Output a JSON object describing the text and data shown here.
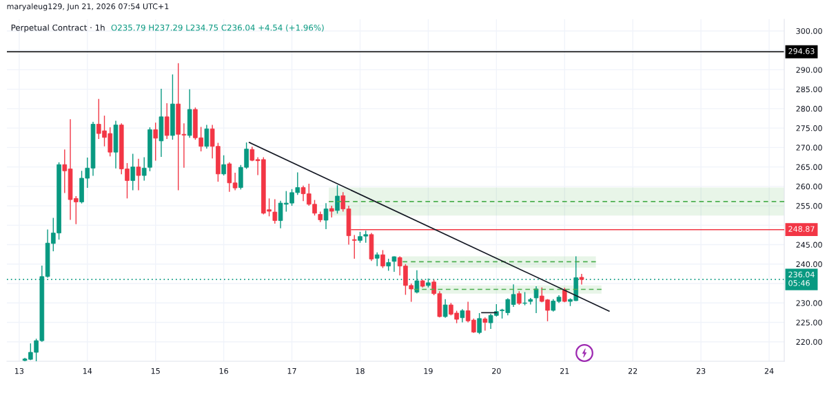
{
  "chart_data": {
    "type": "candlestick",
    "title": "Perpetual Contract · 1h",
    "annotations": [
      "maryaleug129, Jun 21, 2026 07:54 UTC+1",
      "O235.79 H237.29 L234.75 C236.04 +4.54 (+1.96%)"
    ],
    "x": [
      "2026-06-13T02:00",
      "2026-06-13T04:00",
      "2026-06-13T06:00",
      "2026-06-13T08:00",
      "2026-06-13T10:00",
      "2026-06-13T12:00",
      "2026-06-13T14:00",
      "2026-06-13T16:00",
      "2026-06-13T18:00",
      "2026-06-13T20:00",
      "2026-06-13T22:00",
      "2026-06-14T00:00",
      "2026-06-14T02:00",
      "2026-06-14T04:00",
      "2026-06-14T06:00",
      "2026-06-14T08:00",
      "2026-06-14T10:00",
      "2026-06-14T12:00",
      "2026-06-14T14:00",
      "2026-06-14T16:00",
      "2026-06-14T18:00",
      "2026-06-14T20:00",
      "2026-06-14T22:00",
      "2026-06-15T00:00",
      "2026-06-15T02:00",
      "2026-06-15T04:00",
      "2026-06-15T06:00",
      "2026-06-15T08:00",
      "2026-06-15T10:00",
      "2026-06-15T12:00",
      "2026-06-15T14:00",
      "2026-06-15T16:00",
      "2026-06-15T18:00",
      "2026-06-15T20:00",
      "2026-06-15T22:00",
      "2026-06-16T00:00",
      "2026-06-16T02:00",
      "2026-06-16T04:00",
      "2026-06-16T06:00",
      "2026-06-16T08:00",
      "2026-06-16T10:00",
      "2026-06-16T12:00",
      "2026-06-16T14:00",
      "2026-06-16T16:00",
      "2026-06-16T18:00",
      "2026-06-16T20:00",
      "2026-06-16T22:00",
      "2026-06-17T00:00",
      "2026-06-17T02:00",
      "2026-06-17T04:00",
      "2026-06-17T06:00",
      "2026-06-17T08:00",
      "2026-06-17T10:00",
      "2026-06-17T12:00",
      "2026-06-17T14:00",
      "2026-06-17T16:00",
      "2026-06-17T18:00",
      "2026-06-17T20:00",
      "2026-06-17T22:00",
      "2026-06-18T00:00",
      "2026-06-18T02:00",
      "2026-06-18T04:00",
      "2026-06-18T06:00",
      "2026-06-18T08:00",
      "2026-06-18T10:00",
      "2026-06-18T12:00",
      "2026-06-18T14:00",
      "2026-06-18T16:00",
      "2026-06-18T18:00",
      "2026-06-18T20:00",
      "2026-06-18T22:00",
      "2026-06-19T00:00",
      "2026-06-19T02:00",
      "2026-06-19T04:00",
      "2026-06-19T06:00",
      "2026-06-19T08:00",
      "2026-06-19T10:00",
      "2026-06-19T12:00",
      "2026-06-19T14:00",
      "2026-06-19T16:00",
      "2026-06-19T18:00",
      "2026-06-19T20:00",
      "2026-06-19T22:00",
      "2026-06-20T00:00",
      "2026-06-20T02:00",
      "2026-06-20T04:00",
      "2026-06-20T06:00",
      "2026-06-20T08:00",
      "2026-06-20T10:00",
      "2026-06-20T12:00",
      "2026-06-20T14:00",
      "2026-06-20T16:00",
      "2026-06-20T18:00",
      "2026-06-20T20:00",
      "2026-06-20T22:00",
      "2026-06-21T00:00",
      "2026-06-21T02:00",
      "2026-06-21T04:00",
      "2026-06-21T06:00"
    ],
    "ohlc": [
      [
        215.2,
        215.9,
        215.0,
        215.6
      ],
      [
        215.5,
        219.6,
        215.3,
        217.3
      ],
      [
        217.3,
        220.8,
        215.0,
        220.3
      ],
      [
        220.3,
        239.6,
        220.0,
        236.8
      ],
      [
        236.8,
        248.9,
        236.5,
        245.4
      ],
      [
        245.3,
        251.9,
        243.3,
        248.0
      ],
      [
        248.0,
        266.2,
        246.3,
        265.6
      ],
      [
        265.6,
        269.5,
        258.3,
        264.0
      ],
      [
        264.5,
        277.3,
        251.4,
        256.6
      ],
      [
        256.9,
        257.5,
        250.3,
        256.0
      ],
      [
        256.0,
        264.0,
        255.6,
        262.1
      ],
      [
        262.1,
        267.4,
        259.6,
        264.7
      ],
      [
        264.7,
        276.6,
        262.7,
        276.0
      ],
      [
        276.0,
        282.5,
        272.2,
        273.6
      ],
      [
        274.3,
        278.2,
        270.3,
        272.6
      ],
      [
        273.6,
        275.2,
        267.7,
        268.8
      ],
      [
        268.8,
        276.9,
        264.6,
        275.8
      ],
      [
        275.8,
        276.2,
        263.1,
        264.5
      ],
      [
        264.5,
        266.0,
        256.9,
        261.5
      ],
      [
        261.5,
        268.4,
        259.0,
        265.0
      ],
      [
        265.0,
        267.1,
        259.0,
        262.8
      ],
      [
        262.8,
        267.5,
        261.5,
        264.7
      ],
      [
        264.9,
        275.2,
        263.9,
        274.6
      ],
      [
        274.6,
        276.4,
        266.6,
        272.4
      ],
      [
        271.7,
        285.1,
        267.6,
        277.9
      ],
      [
        277.9,
        281.4,
        272.2,
        273.1
      ],
      [
        273.1,
        288.8,
        272.0,
        281.2
      ],
      [
        281.2,
        291.7,
        259.0,
        273.4
      ],
      [
        273.4,
        276.2,
        264.8,
        273.2
      ],
      [
        273.1,
        285.0,
        272.5,
        279.8
      ],
      [
        279.8,
        280.3,
        272.0,
        272.5
      ],
      [
        272.5,
        275.3,
        269.0,
        270.3
      ],
      [
        270.3,
        275.8,
        269.7,
        274.8
      ],
      [
        274.8,
        275.8,
        267.2,
        270.3
      ],
      [
        270.3,
        271.2,
        261.2,
        263.2
      ],
      [
        263.2,
        268.0,
        262.8,
        265.6
      ],
      [
        265.8,
        266.2,
        258.6,
        260.9
      ],
      [
        260.9,
        263.5,
        259.0,
        259.6
      ],
      [
        259.7,
        265.5,
        259.2,
        264.9
      ],
      [
        264.9,
        271.3,
        264.5,
        269.6
      ],
      [
        269.5,
        270.2,
        266.5,
        266.7
      ],
      [
        266.9,
        267.5,
        262.9,
        266.6
      ],
      [
        266.9,
        267.5,
        252.8,
        253.1
      ],
      [
        254.0,
        256.9,
        252.3,
        253.6
      ],
      [
        253.4,
        256.7,
        250.4,
        251.2
      ],
      [
        251.2,
        256.3,
        249.2,
        255.7
      ],
      [
        255.4,
        258.8,
        253.5,
        255.7
      ],
      [
        255.7,
        259.3,
        255.0,
        258.4
      ],
      [
        258.4,
        263.6,
        257.8,
        259.7
      ],
      [
        259.7,
        260.2,
        256.2,
        258.1
      ],
      [
        258.1,
        260.7,
        255.0,
        255.4
      ],
      [
        255.4,
        256.5,
        252.5,
        253.1
      ],
      [
        252.8,
        253.5,
        250.8,
        251.4
      ],
      [
        251.3,
        255.7,
        249.0,
        254.2
      ],
      [
        254.3,
        255.0,
        252.0,
        253.6
      ],
      [
        253.8,
        260.3,
        253.0,
        257.5
      ],
      [
        257.6,
        258.5,
        253.5,
        254.2
      ],
      [
        254.2,
        255.0,
        245.0,
        247.3
      ],
      [
        246.3,
        247.5,
        241.4,
        246.1
      ],
      [
        246.1,
        248.3,
        245.5,
        247.1
      ],
      [
        247.2,
        248.6,
        245.5,
        247.6
      ],
      [
        247.6,
        248.0,
        240.8,
        241.3
      ],
      [
        241.5,
        243.0,
        239.5,
        242.4
      ],
      [
        242.4,
        243.6,
        239.0,
        239.5
      ],
      [
        239.5,
        241.4,
        238.3,
        240.4
      ],
      [
        240.7,
        242.0,
        238.0,
        241.9
      ],
      [
        241.7,
        242.0,
        237.1,
        239.5
      ],
      [
        239.5,
        240.0,
        232.1,
        234.5
      ],
      [
        234.5,
        235.0,
        230.3,
        233.6
      ],
      [
        232.8,
        238.4,
        232.5,
        235.7
      ],
      [
        235.7,
        236.0,
        234.0,
        234.3
      ],
      [
        234.5,
        236.3,
        234.0,
        235.2
      ],
      [
        235.4,
        236.0,
        232.0,
        232.4
      ],
      [
        232.4,
        233.0,
        226.3,
        226.5
      ],
      [
        226.5,
        231.0,
        226.2,
        229.5
      ],
      [
        229.5,
        230.0,
        226.8,
        227.1
      ],
      [
        227.4,
        228.0,
        224.8,
        225.8
      ],
      [
        226.2,
        228.4,
        225.0,
        228.0
      ],
      [
        228.0,
        230.3,
        225.0,
        225.4
      ],
      [
        225.6,
        226.0,
        222.3,
        222.5
      ],
      [
        222.4,
        227.4,
        222.0,
        226.0
      ],
      [
        225.9,
        226.3,
        222.9,
        225.0
      ],
      [
        224.9,
        227.2,
        223.3,
        226.8
      ],
      [
        226.8,
        229.7,
        226.5,
        227.8
      ],
      [
        228.0,
        228.5,
        226.0,
        228.2
      ],
      [
        227.5,
        231.2,
        226.8,
        230.9
      ],
      [
        229.6,
        234.8,
        229.0,
        232.2
      ],
      [
        232.4,
        233.0,
        229.5,
        229.9
      ],
      [
        229.9,
        232.8,
        229.4,
        230.0
      ],
      [
        230.4,
        231.3,
        229.6,
        230.9
      ],
      [
        231.3,
        234.3,
        227.4,
        233.6
      ],
      [
        231.8,
        234.0,
        230.2,
        230.4
      ],
      [
        230.8,
        231.0,
        225.3,
        228.1
      ],
      [
        228.1,
        231.0,
        227.8,
        230.5
      ],
      [
        230.4,
        232.0,
        230.0,
        231.5
      ],
      [
        233.3,
        233.9,
        230.2,
        230.4
      ],
      [
        230.4,
        231.2,
        229.2,
        230.9
      ],
      [
        230.6,
        242.0,
        230.5,
        236.5
      ],
      [
        236.6,
        237.5,
        234.75,
        236.04
      ]
    ],
    "colors": [
      "#089981",
      "#089981",
      "#089981",
      "#089981",
      "#089981",
      "#089981",
      "#089981",
      "#f23645",
      "#f23645",
      "#f23645",
      "#089981",
      "#089981",
      "#089981",
      "#f23645",
      "#f23645",
      "#f23645",
      "#089981",
      "#f23645",
      "#f23645",
      "#089981",
      "#f23645",
      "#089981",
      "#089981",
      "#f23645",
      "#089981",
      "#f23645",
      "#089981",
      "#f23645",
      "#f23645",
      "#089981",
      "#f23645",
      "#f23645",
      "#089981",
      "#f23645",
      "#f23645",
      "#089981",
      "#f23645",
      "#f23645",
      "#089981",
      "#089981",
      "#f23645",
      "#f23645",
      "#f23645",
      "#f23645",
      "#f23645",
      "#089981",
      "#089981",
      "#089981",
      "#089981",
      "#f23645",
      "#f23645",
      "#f23645",
      "#f23645",
      "#089981",
      "#f23645",
      "#089981",
      "#f23645",
      "#f23645",
      "#f23645",
      "#089981",
      "#089981",
      "#f23645",
      "#089981",
      "#f23645",
      "#089981",
      "#089981",
      "#f23645",
      "#f23645",
      "#f23645",
      "#089981",
      "#f23645",
      "#089981",
      "#f23645",
      "#f23645",
      "#089981",
      "#f23645",
      "#f23645",
      "#089981",
      "#f23645",
      "#f23645",
      "#089981",
      "#f23645",
      "#089981",
      "#089981",
      "#089981",
      "#089981",
      "#089981",
      "#f23645",
      "#089981",
      "#089981",
      "#089981",
      "#f23645",
      "#f23645",
      "#089981",
      "#089981",
      "#f23645",
      "#089981",
      "#089981",
      "#f23645"
    ],
    "series": [
      {
        "type": "line",
        "x": [
          "2026-06-17T13:00",
          "2026-06-24T05:20"
        ],
        "values": [
          256.1,
          256.1
        ],
        "lower": [
          252.5,
          252.5
        ],
        "upper": [
          259.7,
          259.7
        ],
        "color": "#4caf50",
        "line_style": "dashed"
      },
      {
        "type": "line",
        "x": [
          "2026-06-18T15:00",
          "2026-06-21T11:00"
        ],
        "values": [
          240.6,
          240.6
        ],
        "lower": [
          239.1,
          239.1
        ],
        "upper": [
          242.0,
          242.0
        ],
        "color": "#4caf50",
        "line_style": "dashed"
      },
      {
        "type": "line",
        "x": [
          "2026-06-18T19:00",
          "2026-06-21T13:00"
        ],
        "values": [
          233.5,
          233.5
        ],
        "lower": [
          232.4,
          232.4
        ],
        "upper": [
          234.5,
          234.5
        ],
        "color": "#4caf50",
        "line_style": "dashed"
      },
      {
        "type": "line",
        "x": [
          "2026-06-17T21:00",
          "2026-06-24T05:20"
        ],
        "values": [
          248.87,
          248.87
        ],
        "color": "#f23645",
        "line_style": "solid",
        "value_labels": [
          null,
          "248.87"
        ]
      },
      {
        "type": "line",
        "x": [
          "2026-06-16T09:00",
          "2026-06-21T15:40"
        ],
        "values": [
          271.3,
          227.9
        ],
        "color": "#131722",
        "line_style": "solid"
      },
      {
        "type": "line",
        "x": [
          "2026-06-19T18:50",
          "2026-06-20T00:00"
        ],
        "values": [
          227.5,
          227.5
        ],
        "color": "#131722",
        "line_style": "solid"
      }
    ],
    "ref_lines": [
      {
        "axis": "y",
        "value": 294.63,
        "label": "294.63",
        "color": "#000000",
        "line_style": "solid"
      },
      {
        "axis": "y",
        "value": 236.04,
        "label": "236.04\n05:46",
        "color": "#089981",
        "line_style": "dotted"
      }
    ],
    "xlim": [
      "2026-06-12T19:40",
      "2026-06-24T05:20"
    ],
    "xticks": [
      {
        "value": "2026-06-13",
        "label": "13"
      },
      {
        "value": "2026-06-14",
        "label": "14"
      },
      {
        "value": "2026-06-15",
        "label": "15"
      },
      {
        "value": "2026-06-16",
        "label": "16"
      },
      {
        "value": "2026-06-17",
        "label": "17"
      },
      {
        "value": "2026-06-18",
        "label": "18"
      },
      {
        "value": "2026-06-19",
        "label": "19"
      },
      {
        "value": "2026-06-20",
        "label": "20"
      },
      {
        "value": "2026-06-21",
        "label": "21"
      },
      {
        "value": "2026-06-22",
        "label": "22"
      },
      {
        "value": "2026-06-23",
        "label": "23"
      },
      {
        "value": "2026-06-24",
        "label": "24"
      }
    ],
    "ylim": [
      215,
      303
    ],
    "yticks": [
      {
        "value": 220,
        "label": "220.00"
      },
      {
        "value": 225,
        "label": "225.00"
      },
      {
        "value": 230,
        "label": "230.00"
      },
      {
        "value": 235,
        "label": null
      },
      {
        "value": 240,
        "label": "240.00"
      },
      {
        "value": 245,
        "label": "245.00"
      },
      {
        "value": 250,
        "label": null
      },
      {
        "value": 255,
        "label": "255.00"
      },
      {
        "value": 260,
        "label": "260.00"
      },
      {
        "value": 265,
        "label": "265.00"
      },
      {
        "value": 270,
        "label": "270.00"
      },
      {
        "value": 275,
        "label": "275.00"
      },
      {
        "value": 280,
        "label": "280.00"
      },
      {
        "value": 285,
        "label": "285.00"
      },
      {
        "value": 290,
        "label": "290.00"
      },
      {
        "value": 295,
        "label": null
      },
      {
        "value": 300,
        "label": "300.00"
      }
    ],
    "grid": true
  }
}
